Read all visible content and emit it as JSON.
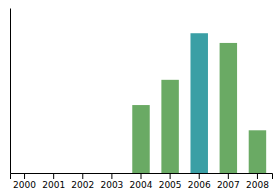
{
  "chart_data": {
    "type": "bar",
    "categories": [
      "2000",
      "2001",
      "2002",
      "2003",
      "2004",
      "2005",
      "2006",
      "2007",
      "2008"
    ],
    "values": [
      0,
      0,
      0,
      0,
      35,
      48,
      72,
      67,
      22
    ],
    "colors": [
      "#6aaa64",
      "#6aaa64",
      "#6aaa64",
      "#6aaa64",
      "#6aaa64",
      "#6aaa64",
      "#3a9fa5",
      "#6aaa64",
      "#6aaa64"
    ],
    "ylim": [
      0,
      85
    ],
    "grid": false,
    "tick_labels": "x"
  }
}
